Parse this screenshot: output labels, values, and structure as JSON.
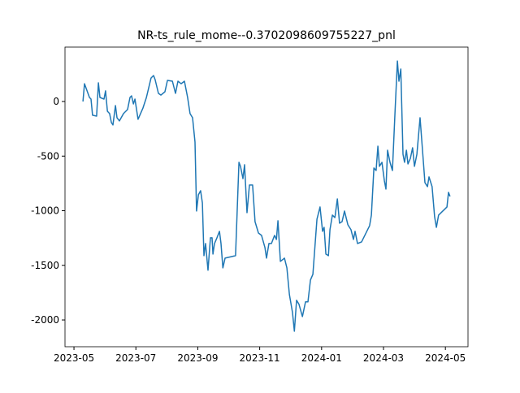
{
  "chart_data": {
    "type": "line",
    "title": "NR-ts_rule_mome--0.3702098609755227_pnl",
    "x": [
      0.29,
      0.34,
      0.5,
      0.55,
      0.6,
      0.73,
      0.79,
      0.84,
      0.97,
      1.02,
      1.08,
      1.15,
      1.21,
      1.26,
      1.34,
      1.39,
      1.47,
      1.6,
      1.73,
      1.81,
      1.86,
      1.92,
      1.97,
      2.07,
      2.23,
      2.34,
      2.49,
      2.57,
      2.62,
      2.73,
      2.81,
      2.94,
      3.02,
      3.18,
      3.28,
      3.36,
      3.46,
      3.57,
      3.67,
      3.75,
      3.83,
      3.91,
      3.96,
      4.02,
      4.09,
      4.15,
      4.2,
      4.25,
      4.33,
      4.41,
      4.46,
      4.49,
      4.54,
      4.62,
      4.7,
      4.75,
      4.81,
      4.88,
      5.22,
      5.33,
      5.38,
      5.46,
      5.51,
      5.59,
      5.67,
      5.77,
      5.85,
      5.96,
      6.06,
      6.17,
      6.22,
      6.3,
      6.38,
      6.48,
      6.54,
      6.59,
      6.67,
      6.8,
      6.88,
      6.96,
      7.06,
      7.12,
      7.19,
      7.27,
      7.38,
      7.48,
      7.56,
      7.64,
      7.72,
      7.85,
      7.95,
      8.03,
      8.08,
      8.14,
      8.22,
      8.27,
      8.35,
      8.43,
      8.51,
      8.58,
      8.66,
      8.74,
      8.85,
      8.95,
      9.03,
      9.08,
      9.16,
      9.29,
      9.55,
      9.61,
      9.69,
      9.76,
      9.82,
      9.87,
      9.95,
      10.03,
      10.08,
      10.13,
      10.21,
      10.29,
      10.37,
      10.45,
      10.5,
      10.56,
      10.63,
      10.68,
      10.74,
      10.79,
      10.87,
      10.94,
      11.0,
      11.08,
      11.18,
      11.26,
      11.34,
      11.42,
      11.47,
      11.57,
      11.65,
      11.71,
      11.78,
      12.05,
      12.1,
      12.15
    ],
    "series": [
      {
        "color": "#1f77b4",
        "values": [
          0,
          163,
          37,
          22,
          -126,
          -134,
          171,
          37,
          22,
          97,
          -89,
          -111,
          -193,
          -215,
          -37,
          -149,
          -178,
          -111,
          -74,
          37,
          52,
          -22,
          22,
          -163,
          -59,
          37,
          215,
          238,
          201,
          74,
          59,
          89,
          193,
          186,
          74,
          186,
          163,
          186,
          37,
          -111,
          -149,
          -371,
          -1003,
          -854,
          -817,
          -929,
          -1412,
          -1300,
          -1545,
          -1248,
          -1248,
          -1397,
          -1300,
          -1248,
          -1189,
          -1300,
          -1523,
          -1434,
          -1412,
          -557,
          -594,
          -706,
          -579,
          -1018,
          -765,
          -765,
          -1100,
          -1204,
          -1226,
          -1337,
          -1434,
          -1300,
          -1300,
          -1226,
          -1263,
          -1092,
          -1464,
          -1434,
          -1523,
          -1768,
          -1932,
          -2103,
          -1820,
          -1857,
          -1969,
          -1835,
          -1835,
          -1634,
          -1582,
          -1077,
          -966,
          -1189,
          -1152,
          -1397,
          -1412,
          -1174,
          -1040,
          -1062,
          -892,
          -1114,
          -1100,
          -1003,
          -1129,
          -1174,
          -1263,
          -1189,
          -1300,
          -1285,
          -1137,
          -1040,
          -609,
          -632,
          -409,
          -594,
          -557,
          -728,
          -802,
          -446,
          -557,
          -632,
          -111,
          371,
          186,
          297,
          -483,
          -557,
          -446,
          -572,
          -520,
          -424,
          -594,
          -483,
          -149,
          -446,
          -743,
          -780,
          -691,
          -780,
          -1055,
          -1152,
          -1040,
          -966,
          -832,
          -869
        ]
      }
    ],
    "xlim": [
      -0.29,
      12.73
    ],
    "xticks": [
      {
        "value": 0,
        "label": "2023-05"
      },
      {
        "value": 2,
        "label": "2023-07"
      },
      {
        "value": 4,
        "label": "2023-09"
      },
      {
        "value": 6,
        "label": "2023-11"
      },
      {
        "value": 8,
        "label": "2024-01"
      },
      {
        "value": 10,
        "label": "2024-03"
      },
      {
        "value": 12,
        "label": "2024-05"
      }
    ],
    "ylim": [
      -2245,
      498
    ],
    "yticks": [
      -2000,
      -1500,
      -1000,
      -500,
      0
    ]
  }
}
